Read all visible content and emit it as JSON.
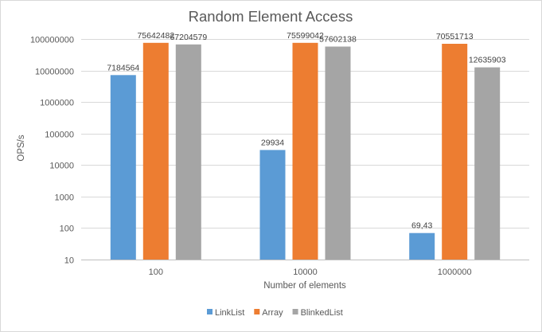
{
  "chart_data": {
    "type": "bar",
    "title": "Random Element Access",
    "xlabel": "Number of elements",
    "ylabel": "OPS/s",
    "yscale": "log",
    "ylim": [
      10,
      100000000
    ],
    "yticks": [
      10,
      100,
      1000,
      10000,
      100000,
      1000000,
      10000000,
      100000000
    ],
    "ytick_labels": [
      "10",
      "100",
      "1000",
      "10000",
      "100000",
      "1000000",
      "10000000",
      "100000000"
    ],
    "categories": [
      "100",
      "10000",
      "1000000"
    ],
    "series": [
      {
        "name": "LinkList",
        "color": "#5b9bd5",
        "values": [
          7184564,
          29934,
          69.43
        ],
        "labels": [
          "7184564",
          "29934",
          "69,43"
        ]
      },
      {
        "name": "Array",
        "color": "#ed7d31",
        "values": [
          75642482,
          75599042,
          70551713
        ],
        "labels": [
          "75642482",
          "75599042",
          "70551713"
        ]
      },
      {
        "name": "BlinkedList",
        "color": "#a5a5a5",
        "values": [
          67204579,
          57602138,
          12635903
        ],
        "labels": [
          "67204579",
          "57602138",
          "12635903"
        ]
      }
    ],
    "grid": true,
    "legend_position": "bottom"
  }
}
